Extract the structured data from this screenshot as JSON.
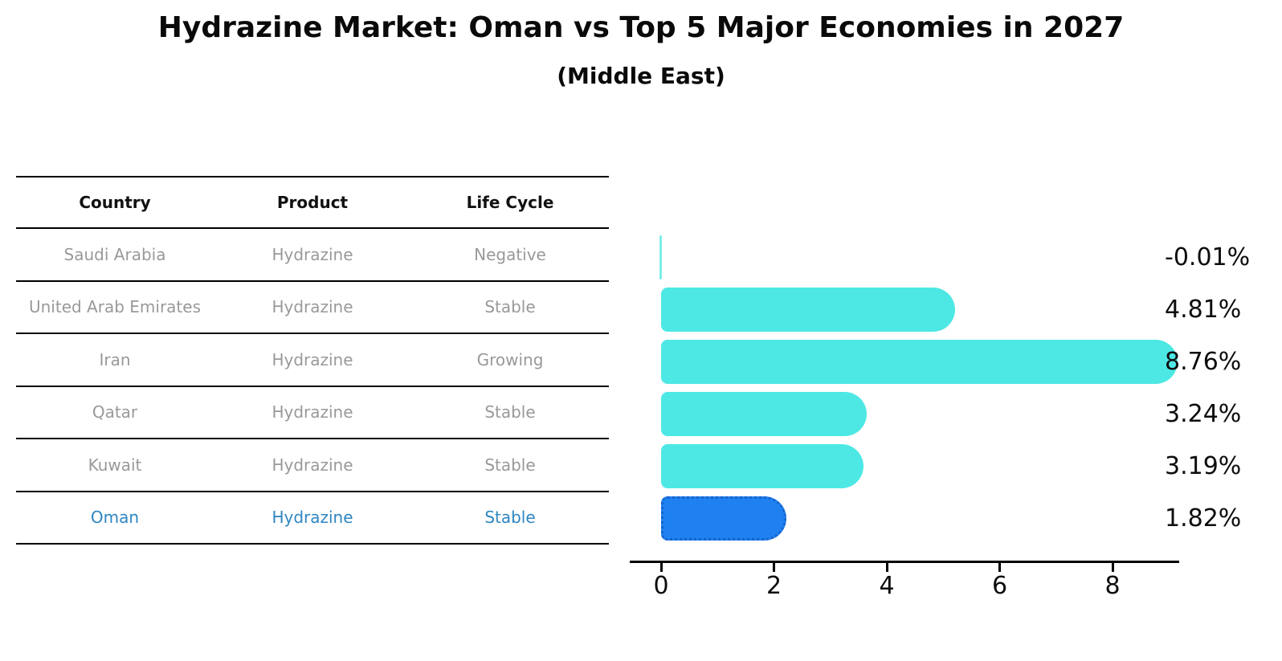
{
  "title": "Hydrazine Market: Oman vs Top 5 Major Economies in 2027",
  "subtitle": "(Middle East)",
  "table": {
    "headers": [
      "Country",
      "Product",
      "Life Cycle"
    ],
    "rows": [
      {
        "country": "Saudi Arabia",
        "product": "Hydrazine",
        "life_cycle": "Negative",
        "highlight": false
      },
      {
        "country": "United Arab Emirates",
        "product": "Hydrazine",
        "life_cycle": "Stable",
        "highlight": false
      },
      {
        "country": "Iran",
        "product": "Hydrazine",
        "life_cycle": "Growing",
        "highlight": false
      },
      {
        "country": "Qatar",
        "product": "Hydrazine",
        "life_cycle": "Stable",
        "highlight": false
      },
      {
        "country": "Kuwait",
        "product": "Hydrazine",
        "life_cycle": "Stable",
        "highlight": true
      }
    ]
  },
  "chart_data": {
    "type": "bar",
    "orientation": "horizontal",
    "categories": [
      "Saudi Arabia",
      "United Arab Emirates",
      "Iran",
      "Qatar",
      "Kuwait",
      "Oman"
    ],
    "values": [
      -0.01,
      4.81,
      8.76,
      3.24,
      3.19,
      1.82
    ],
    "value_labels": [
      "-0.01%",
      "4.81%",
      "8.76%",
      "3.24%",
      "3.19%",
      "1.82%"
    ],
    "title": "Hydrazine Market: Oman vs Top 5 Major Economies in 2027",
    "subtitle": "(Middle East)",
    "xlabel": "",
    "ylabel": "",
    "xticks": [
      0,
      2,
      4,
      6,
      8
    ],
    "xlim": [
      -0.3,
      9.2
    ],
    "grid": false,
    "legend": false,
    "bar_color": "#4DE8E4",
    "highlight_color": "#1F81F0",
    "highlight_index": 5,
    "highlight_text_color": "#2E86C1"
  }
}
